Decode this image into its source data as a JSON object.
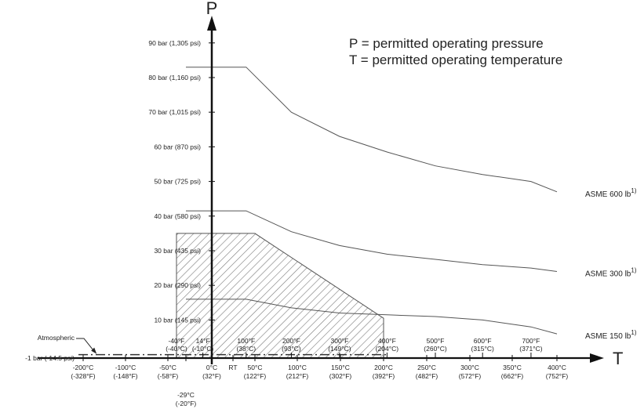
{
  "chart_data": {
    "type": "line",
    "title": "",
    "legend": [
      "P = permitted operating pressure",
      "T = permitted operating temperature"
    ],
    "xlabel": "T",
    "ylabel": "P",
    "x_unit": "°C",
    "y_unit": "bar",
    "grid": false,
    "xlim": [
      -205,
      415
    ],
    "ylim": [
      -1,
      95
    ],
    "y_ticks": [
      {
        "value": -1,
        "label": "-1 bar (-14.5 psi)"
      },
      {
        "value": 10,
        "label": "10 bar (145 psi)"
      },
      {
        "value": 20,
        "label": "20 bar (290 psi)"
      },
      {
        "value": 30,
        "label": "30 bar (435 psi)"
      },
      {
        "value": 40,
        "label": "40 bar (580 psi)"
      },
      {
        "value": 50,
        "label": "50 bar (725 psi)"
      },
      {
        "value": 60,
        "label": "60 bar (870 psi)"
      },
      {
        "value": 70,
        "label": "70 bar (1,015 psi)"
      },
      {
        "value": 80,
        "label": "80 bar (1,160 psi)"
      },
      {
        "value": 90,
        "label": "90 bar (1,305 psi)"
      }
    ],
    "x_ticks_below": [
      {
        "value": -200,
        "l1": "-200°C",
        "l2": "(-328°F)"
      },
      {
        "value": -100,
        "l1": "-100°C",
        "l2": "(-148°F)"
      },
      {
        "value": -50,
        "l1": "-50°C",
        "l2": "(-58°F)"
      },
      {
        "value": 0,
        "l1": "0°C",
        "l2": "(32°F)"
      },
      {
        "value": 20,
        "l1": "RT",
        "l2": ""
      },
      {
        "value": 50,
        "l1": "50°C",
        "l2": "(122°F)"
      },
      {
        "value": 100,
        "l1": "100°C",
        "l2": "(212°F)"
      },
      {
        "value": 150,
        "l1": "150°C",
        "l2": "(302°F)"
      },
      {
        "value": 200,
        "l1": "200°C",
        "l2": "(392°F)"
      },
      {
        "value": 250,
        "l1": "250°C",
        "l2": "(482°F)"
      },
      {
        "value": 300,
        "l1": "300°C",
        "l2": "(572°F)"
      },
      {
        "value": 350,
        "l1": "350°C",
        "l2": "(662°F)"
      },
      {
        "value": 400,
        "l1": "400°C",
        "l2": "(752°F)"
      }
    ],
    "x_ticks_below2": [
      {
        "value": -29,
        "l1": "-29°C",
        "l2": "(-20°F)"
      }
    ],
    "x_ticks_above": [
      {
        "value": -40,
        "l1": "-40°F",
        "l2": "(-40°C)"
      },
      {
        "value": -10,
        "l1": "14°F",
        "l2": "(-10°C)"
      },
      {
        "value": 38,
        "l1": "100°F",
        "l2": "(38°C)"
      },
      {
        "value": 93,
        "l1": "200°F",
        "l2": "(93°C)"
      },
      {
        "value": 149,
        "l1": "300°F",
        "l2": "(149°C)"
      },
      {
        "value": 204,
        "l1": "400°F",
        "l2": "(204°C)"
      },
      {
        "value": 260,
        "l1": "500°F",
        "l2": "(260°C)"
      },
      {
        "value": 315,
        "l1": "600°F",
        "l2": "(315°C)"
      },
      {
        "value": 371,
        "l1": "700°F",
        "l2": "(371°C)"
      }
    ],
    "series": [
      {
        "name": "ASME 600 lb",
        "sup": "1)",
        "x": [
          -29,
          38,
          93,
          149,
          204,
          260,
          315,
          371,
          400
        ],
        "y": [
          83,
          83,
          70,
          63,
          58.5,
          54.5,
          52,
          50,
          47
        ]
      },
      {
        "name": "ASME 300 lb",
        "sup": "1)",
        "x": [
          -29,
          38,
          93,
          149,
          204,
          260,
          315,
          371,
          400
        ],
        "y": [
          41.5,
          41.5,
          35.5,
          31.5,
          29,
          27.5,
          26,
          25,
          24
        ]
      },
      {
        "name": "ASME 150 lb",
        "sup": "1)",
        "x": [
          -29,
          38,
          93,
          149,
          204,
          260,
          315,
          371,
          400
        ],
        "y": [
          16,
          16,
          13.5,
          12,
          11.5,
          11,
          10,
          8,
          6
        ]
      }
    ],
    "shaded_region": {
      "x": [
        -40,
        -40,
        50,
        200,
        200
      ],
      "y": [
        -1,
        35,
        35,
        10.5,
        -1
      ]
    },
    "annotations": [
      {
        "text": "Atmospheric",
        "at_x": -170,
        "at_y": 0
      }
    ]
  }
}
